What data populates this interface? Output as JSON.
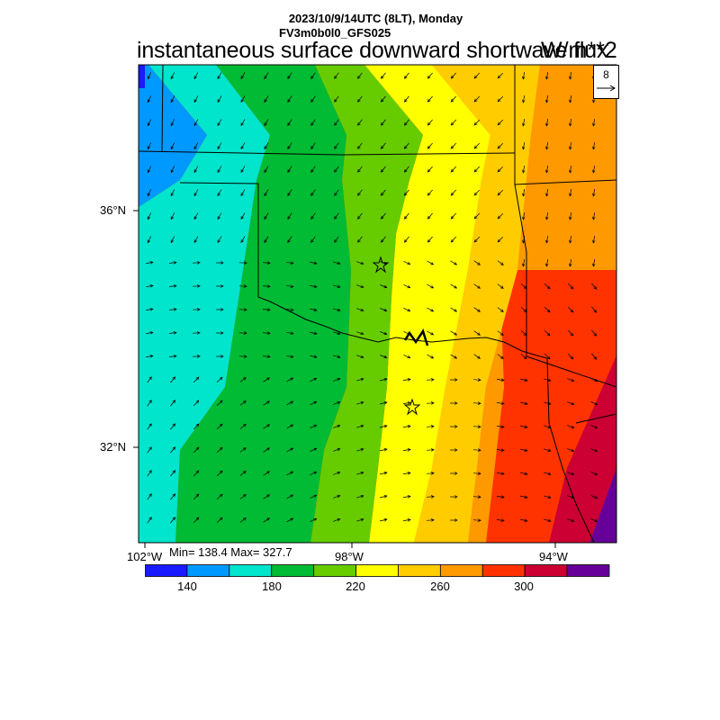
{
  "header": {
    "date_line": "2023/10/9/14UTC (8LT), Monday",
    "model_line": "FV3m0b0l0_GFS025",
    "title": "instantaneous surface downward shortwave flux",
    "units": "W/m**2"
  },
  "reference_vector": {
    "label": "8"
  },
  "lat_labels": [
    "36°N",
    "32°N"
  ],
  "lon_labels": [
    "102°W",
    "98°W",
    "94°W"
  ],
  "stats": {
    "text": "Min= 138.4 Max= 327.7",
    "min": 138.4,
    "max": 327.7
  },
  "colorbar": {
    "colors": [
      "#1a1aff",
      "#0099ff",
      "#00e5cc",
      "#00bb33",
      "#66cc00",
      "#ffff00",
      "#ffcc00",
      "#ff9900",
      "#ff3300",
      "#cc0033",
      "#660099"
    ],
    "tick_labels": [
      "140",
      "180",
      "220",
      "260",
      "300"
    ]
  },
  "markers": {
    "stars": 2
  },
  "colors": {
    "border": "#000000"
  }
}
